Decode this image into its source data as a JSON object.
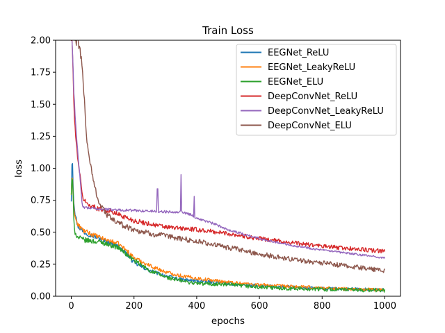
{
  "chart_data": {
    "type": "line",
    "title": "Train Loss",
    "xlabel": "epochs",
    "ylabel": "loss",
    "xlim": [
      -50,
      1050
    ],
    "ylim": [
      0,
      2.0
    ],
    "xticks": [
      0,
      200,
      400,
      600,
      800,
      1000
    ],
    "yticks": [
      0.0,
      0.25,
      0.5,
      0.75,
      1.0,
      1.25,
      1.5,
      1.75,
      2.0
    ],
    "xtick_labels": [
      "0",
      "200",
      "400",
      "600",
      "800",
      "1000"
    ],
    "ytick_labels": [
      "0.00",
      "0.25",
      "0.50",
      "0.75",
      "1.00",
      "1.25",
      "1.50",
      "1.75",
      "2.00"
    ],
    "legend_position": "upper right",
    "grid": false,
    "series": [
      {
        "name": "EEGNet_ReLU",
        "color": "#1f77b4",
        "noise": 0.012,
        "x": [
          0,
          3,
          5,
          8,
          12,
          20,
          40,
          70,
          100,
          150,
          180,
          200,
          250,
          300,
          350,
          400,
          500,
          600,
          700,
          800,
          900,
          1000
        ],
        "y": [
          0.75,
          1.2,
          0.9,
          0.75,
          0.65,
          0.55,
          0.5,
          0.47,
          0.44,
          0.39,
          0.32,
          0.26,
          0.2,
          0.16,
          0.13,
          0.12,
          0.1,
          0.08,
          0.07,
          0.06,
          0.055,
          0.05
        ]
      },
      {
        "name": "EEGNet_LeakyReLU",
        "color": "#ff7f0e",
        "noise": 0.012,
        "x": [
          0,
          3,
          5,
          8,
          12,
          20,
          40,
          70,
          100,
          150,
          180,
          200,
          250,
          300,
          350,
          400,
          500,
          600,
          700,
          800,
          900,
          1000
        ],
        "y": [
          0.8,
          0.95,
          0.85,
          0.7,
          0.62,
          0.56,
          0.51,
          0.48,
          0.45,
          0.41,
          0.35,
          0.3,
          0.24,
          0.19,
          0.16,
          0.14,
          0.11,
          0.09,
          0.075,
          0.065,
          0.055,
          0.05
        ]
      },
      {
        "name": "EEGNet_ELU",
        "color": "#2ca02c",
        "noise": 0.014,
        "x": [
          0,
          3,
          5,
          8,
          12,
          20,
          40,
          70,
          100,
          150,
          200,
          250,
          300,
          350,
          400,
          500,
          600,
          700,
          800,
          900,
          1000
        ],
        "y": [
          0.8,
          0.95,
          0.85,
          0.6,
          0.5,
          0.46,
          0.44,
          0.43,
          0.42,
          0.38,
          0.28,
          0.2,
          0.15,
          0.12,
          0.1,
          0.09,
          0.07,
          0.06,
          0.055,
          0.05,
          0.045
        ]
      },
      {
        "name": "DeepConvNet_ReLU",
        "color": "#d62728",
        "noise": 0.012,
        "x": [
          0,
          3,
          8,
          15,
          25,
          35,
          50,
          80,
          100,
          150,
          200,
          300,
          400,
          500,
          600,
          700,
          800,
          900,
          1000
        ],
        "y": [
          2.0,
          2.0,
          1.5,
          1.2,
          1.0,
          0.78,
          0.72,
          0.69,
          0.68,
          0.64,
          0.59,
          0.54,
          0.52,
          0.49,
          0.45,
          0.42,
          0.39,
          0.37,
          0.35
        ]
      },
      {
        "name": "DeepConvNet_LeakyReLU",
        "color": "#9467bd",
        "noise": 0.006,
        "x": [
          0,
          3,
          8,
          15,
          25,
          35,
          50,
          100,
          200,
          300,
          350,
          380,
          400,
          450,
          500,
          600,
          700,
          800,
          900,
          1000
        ],
        "y": [
          2.0,
          2.0,
          1.6,
          1.3,
          1.0,
          0.7,
          0.69,
          0.68,
          0.67,
          0.66,
          0.66,
          0.64,
          0.61,
          0.57,
          0.52,
          0.45,
          0.4,
          0.36,
          0.33,
          0.3
        ],
        "spikes": [
          [
            275,
            0.84
          ],
          [
            350,
            0.95
          ],
          [
            392,
            0.78
          ]
        ]
      },
      {
        "name": "DeepConvNet_ELU",
        "color": "#8c564b",
        "noise": 0.015,
        "x": [
          0,
          5,
          10,
          20,
          30,
          40,
          50,
          70,
          90,
          120,
          150,
          200,
          250,
          300,
          400,
          500,
          600,
          700,
          800,
          900,
          1000
        ],
        "y": [
          2.0,
          2.0,
          2.0,
          2.0,
          1.9,
          1.6,
          1.2,
          0.9,
          0.72,
          0.62,
          0.57,
          0.52,
          0.49,
          0.47,
          0.43,
          0.38,
          0.33,
          0.29,
          0.26,
          0.23,
          0.2
        ]
      }
    ]
  }
}
